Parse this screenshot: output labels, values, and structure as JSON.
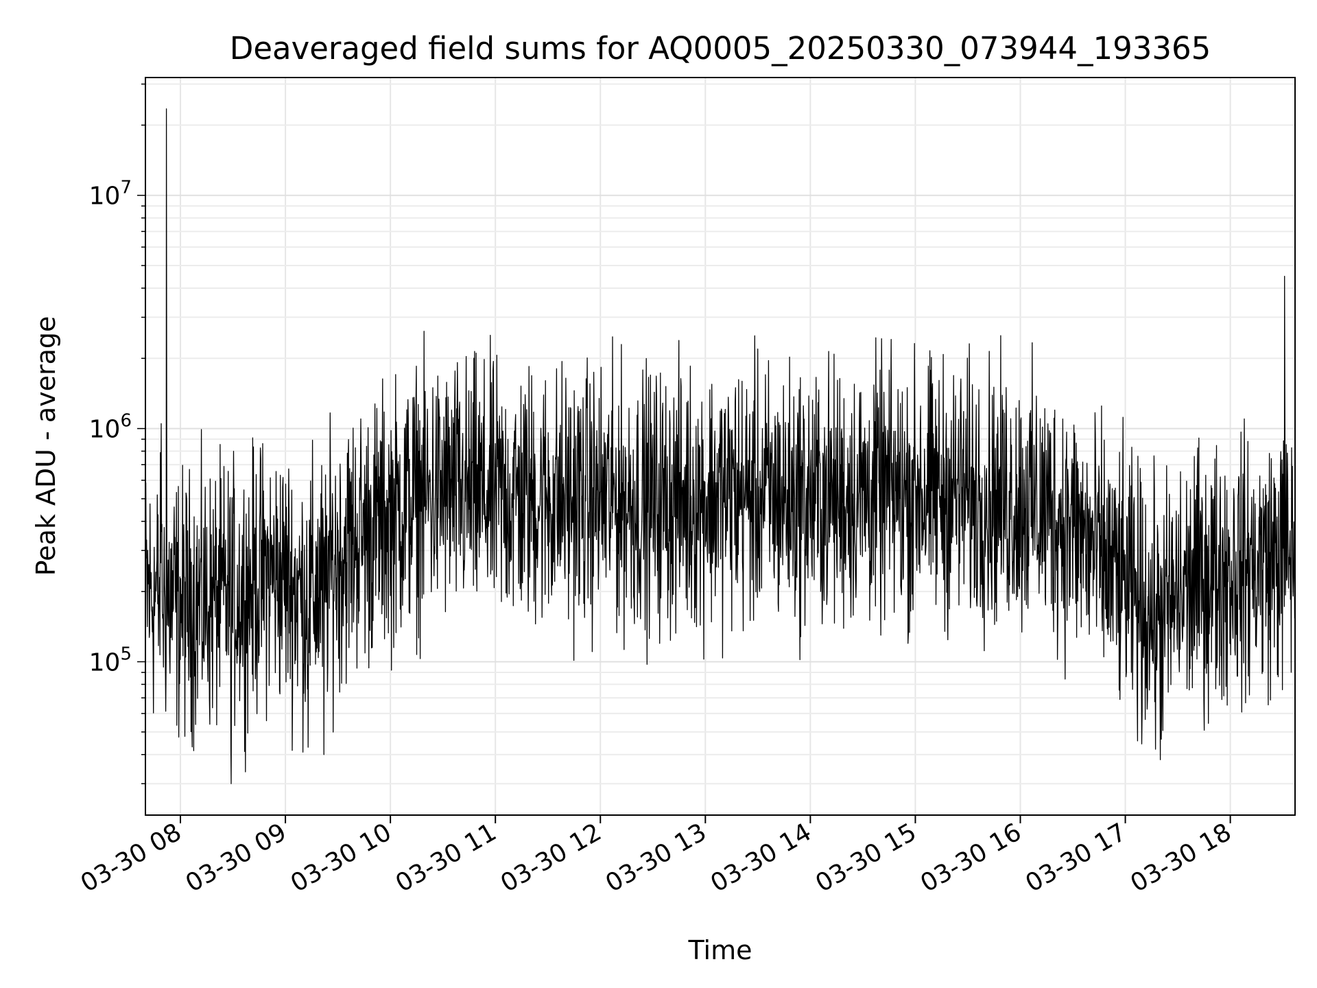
{
  "chart_data": {
    "type": "line",
    "title": "Deaveraged field sums for AQ0005_20250330_073944_193365",
    "xlabel": "Time",
    "ylabel": "Peak ADU - average",
    "xscale": "time",
    "yscale": "log",
    "xlim": [
      "2025-03-30 07:40",
      "2025-03-30 18:37"
    ],
    "ylim": [
      22000,
      32000000
    ],
    "x_ticks": [
      "03-30 08",
      "03-30 09",
      "03-30 10",
      "03-30 11",
      "03-30 12",
      "03-30 13",
      "03-30 14",
      "03-30 15",
      "03-30 16",
      "03-30 17",
      "03-30 18"
    ],
    "y_ticks": [
      {
        "value": 100000,
        "base": "10",
        "exp": "5"
      },
      {
        "value": 1000000,
        "base": "10",
        "exp": "6"
      },
      {
        "value": 10000000,
        "base": "10",
        "exp": "7"
      }
    ],
    "grid": true,
    "line_color": "#000000",
    "series": [
      {
        "x": [
          "2025-03-30 07:40",
          "2025-03-30 07:50",
          "2025-03-30 08:00",
          "2025-03-30 08:10",
          "2025-03-30 08:20",
          "2025-03-30 08:30",
          "2025-03-30 08:40",
          "2025-03-30 08:50",
          "2025-03-30 09:00",
          "2025-03-30 09:10",
          "2025-03-30 09:20",
          "2025-03-30 09:30",
          "2025-03-30 09:40",
          "2025-03-30 09:50",
          "2025-03-30 10:00",
          "2025-03-30 10:15",
          "2025-03-30 10:30",
          "2025-03-30 10:45",
          "2025-03-30 11:00",
          "2025-03-30 11:20",
          "2025-03-30 11:40",
          "2025-03-30 12:00",
          "2025-03-30 12:20",
          "2025-03-30 12:40",
          "2025-03-30 13:00",
          "2025-03-30 13:20",
          "2025-03-30 13:40",
          "2025-03-30 14:00",
          "2025-03-30 14:20",
          "2025-03-30 14:40",
          "2025-03-30 15:00",
          "2025-03-30 15:20",
          "2025-03-30 15:40",
          "2025-03-30 16:00",
          "2025-03-30 16:15",
          "2025-03-30 16:30",
          "2025-03-30 16:45",
          "2025-03-30 17:00",
          "2025-03-30 17:10",
          "2025-03-30 17:20",
          "2025-03-30 17:30",
          "2025-03-30 17:45",
          "2025-03-30 18:00",
          "2025-03-30 18:15",
          "2025-03-30 18:30",
          "2025-03-30 18:37"
        ],
        "y": [
          200000,
          190000,
          175000,
          180000,
          185000,
          190000,
          210000,
          240000,
          230000,
          190000,
          210000,
          280000,
          340000,
          370000,
          420000,
          500000,
          530000,
          520000,
          510000,
          510000,
          500000,
          500000,
          490000,
          490000,
          510000,
          520000,
          510000,
          500000,
          520000,
          530000,
          520000,
          530000,
          510000,
          490000,
          450000,
          380000,
          280000,
          210000,
          175000,
          150000,
          190000,
          230000,
          250000,
          260000,
          290000,
          300000
        ]
      }
    ],
    "spikes": [
      {
        "x": "2025-03-30 07:52",
        "y": 23500000
      },
      {
        "x": "2025-03-30 07:49",
        "y": 1050000
      },
      {
        "x": "2025-03-30 08:29",
        "y": 30000
      },
      {
        "x": "2025-03-30 09:13",
        "y": 43000
      },
      {
        "x": "2025-03-30 09:22",
        "y": 40000
      },
      {
        "x": "2025-03-30 13:17",
        "y": 1300000
      },
      {
        "x": "2025-03-30 15:03",
        "y": 1250000
      },
      {
        "x": "2025-03-30 17:20",
        "y": 38000
      },
      {
        "x": "2025-03-30 18:31",
        "y": 4500000
      },
      {
        "x": "2025-03-30 18:08",
        "y": 1100000
      }
    ]
  }
}
